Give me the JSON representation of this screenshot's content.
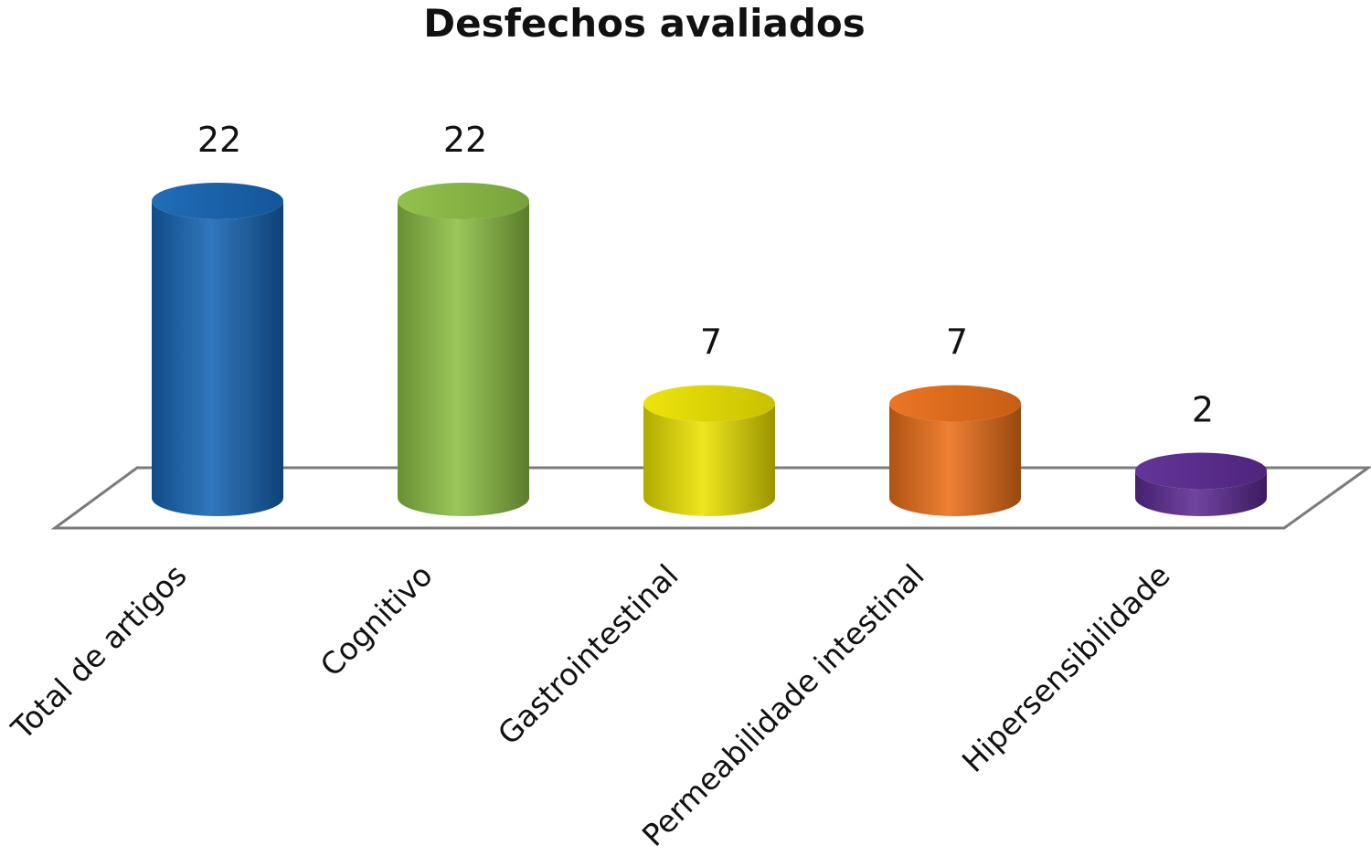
{
  "chart_data": {
    "type": "bar",
    "style": "3d-cylinder",
    "title": "Desfechos avaliados",
    "categories": [
      "Total de artigos",
      "Cognitivo",
      "Gastrointestinal",
      "Permeabilidade intestinal",
      "Hipersensibilidade"
    ],
    "values": [
      22,
      22,
      7,
      7,
      2
    ],
    "data_labels": [
      "22",
      "22",
      "7",
      "7",
      "2"
    ],
    "bar_colors": [
      "#1565b4",
      "#8cbf44",
      "#ece300",
      "#ea6f18",
      "#5c2a93"
    ],
    "ylim": [
      0,
      22
    ],
    "grid": false,
    "legend": "none",
    "xlabel": "",
    "ylabel": ""
  }
}
